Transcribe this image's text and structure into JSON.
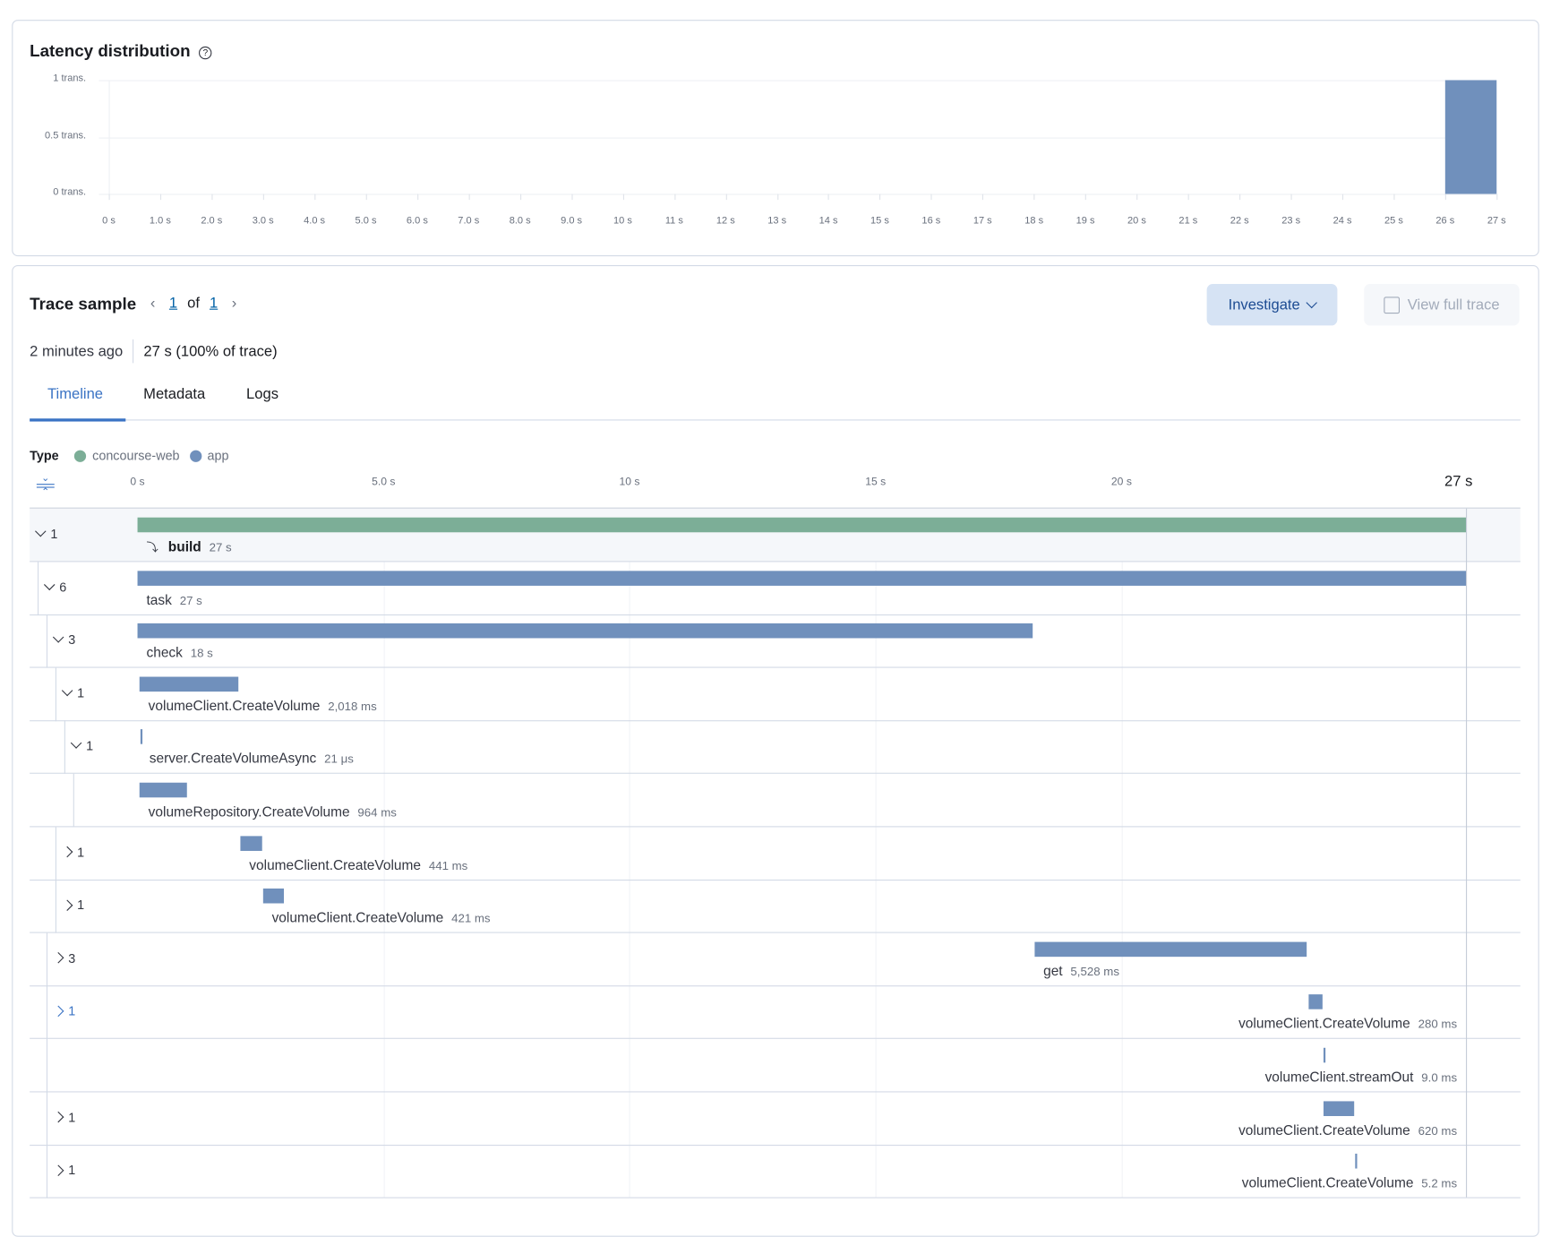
{
  "latency": {
    "title": "Latency distribution",
    "help_icon": "question-circle-icon",
    "chart_data": {
      "type": "bar",
      "title": "",
      "y_ticks": [
        "1 trans.",
        "0.5 trans.",
        "0 trans."
      ],
      "x_ticks": [
        "0 s",
        "1.0 s",
        "2.0 s",
        "3.0 s",
        "4.0 s",
        "5.0 s",
        "6.0 s",
        "7.0 s",
        "8.0 s",
        "9.0 s",
        "10 s",
        "11 s",
        "12 s",
        "13 s",
        "14 s",
        "15 s",
        "16 s",
        "17 s",
        "18 s",
        "19 s",
        "20 s",
        "21 s",
        "22 s",
        "23 s",
        "24 s",
        "25 s",
        "26 s",
        "27 s"
      ],
      "xlim": [
        0,
        27
      ],
      "ylim": [
        0,
        1
      ],
      "bars": [
        {
          "x_start": 26,
          "x_end": 27,
          "value": 1
        }
      ],
      "bar_color": "#7090bc",
      "grid": true
    }
  },
  "trace": {
    "title": "Trace sample",
    "pager": {
      "current": "1",
      "of": "of",
      "total": "1"
    },
    "investigate_label": "Investigate",
    "view_full_trace_label": "View full trace",
    "age": "2 minutes ago",
    "duration": "27 s (100% of trace)",
    "tabs": [
      {
        "label": "Timeline",
        "active": true
      },
      {
        "label": "Metadata"
      },
      {
        "label": "Logs"
      }
    ],
    "legend": {
      "label": "Type",
      "items": [
        {
          "name": "concourse-web",
          "color": "#7cae97"
        },
        {
          "name": "app",
          "color": "#7090bc"
        }
      ]
    },
    "axis": {
      "ticks": [
        {
          "v": 0,
          "label": "0 s"
        },
        {
          "v": 5,
          "label": "5.0 s"
        },
        {
          "v": 10,
          "label": "10 s"
        },
        {
          "v": 15,
          "label": "15 s"
        },
        {
          "v": 20,
          "label": "20 s"
        }
      ],
      "end_label": "27 s",
      "max": 27
    },
    "spans": [
      {
        "name": "build",
        "dur_label": "27 s",
        "start": 0,
        "dur": 27,
        "service": "concourse-web",
        "depth": 0,
        "count": "1",
        "expanded": true,
        "bold": true,
        "icon": "merge-icon"
      },
      {
        "name": "task",
        "dur_label": "27 s",
        "start": 0,
        "dur": 27,
        "service": "app",
        "depth": 1,
        "count": "6",
        "expanded": true
      },
      {
        "name": "check",
        "dur_label": "18 s",
        "start": 0,
        "dur": 18.2,
        "service": "app",
        "depth": 2,
        "count": "3",
        "expanded": true
      },
      {
        "name": "volumeClient.CreateVolume",
        "dur_label": "2,018 ms",
        "start": 0.04,
        "dur": 2.018,
        "service": "app",
        "depth": 3,
        "count": "1",
        "expanded": true
      },
      {
        "name": "server.CreateVolumeAsync",
        "dur_label": "21 μs",
        "start": 0.06,
        "dur": 2.1e-05,
        "service": "app",
        "depth": 4,
        "count": "1",
        "expanded": true
      },
      {
        "name": "volumeRepository.CreateVolume",
        "dur_label": "964 ms",
        "start": 0.04,
        "dur": 0.964,
        "service": "app",
        "depth": 5
      },
      {
        "name": "volumeClient.CreateVolume",
        "dur_label": "441 ms",
        "start": 2.09,
        "dur": 0.441,
        "service": "app",
        "depth": 3,
        "count": "1",
        "expanded": false
      },
      {
        "name": "volumeClient.CreateVolume",
        "dur_label": "421 ms",
        "start": 2.55,
        "dur": 0.421,
        "service": "app",
        "depth": 3,
        "count": "1",
        "expanded": false
      },
      {
        "name": "get",
        "dur_label": "5,528 ms",
        "start": 18.23,
        "dur": 5.528,
        "service": "app",
        "depth": 2,
        "count": "3",
        "expanded": false
      },
      {
        "name": "volumeClient.CreateVolume",
        "dur_label": "280 ms",
        "start": 23.8,
        "dur": 0.28,
        "service": "app",
        "depth": 2,
        "count": "1",
        "expanded": false,
        "highlight": true
      },
      {
        "name": "volumeClient.streamOut",
        "dur_label": "9.0 ms",
        "start": 24.1,
        "dur": 0.009,
        "service": "app",
        "depth": 2
      },
      {
        "name": "volumeClient.CreateVolume",
        "dur_label": "620 ms",
        "start": 24.1,
        "dur": 0.62,
        "service": "app",
        "depth": 2,
        "count": "1",
        "expanded": false
      },
      {
        "name": "volumeClient.CreateVolume",
        "dur_label": "5.2 ms",
        "start": 24.75,
        "dur": 0.0052,
        "service": "app",
        "depth": 2,
        "count": "1",
        "expanded": false
      }
    ]
  }
}
